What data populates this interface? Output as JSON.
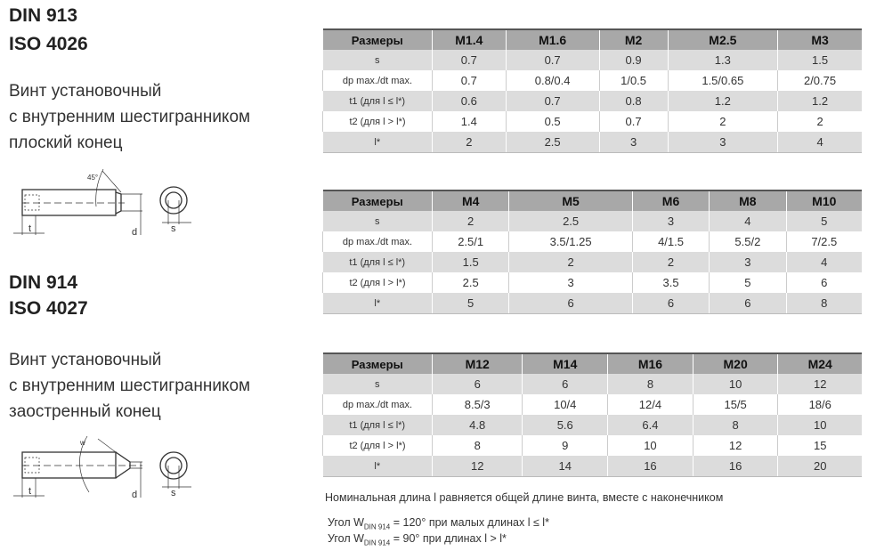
{
  "left": {
    "din913": "DIN 913",
    "iso4026": "ISO 4026",
    "desc1": [
      "Винт установочный",
      "с внутренним шестигранником",
      "плоский конец"
    ],
    "din914": "DIN 914",
    "iso4027": "ISO 4027",
    "desc2": [
      "Винт установочный",
      "с внутренним шестигранником",
      "заостренный конец"
    ],
    "drawing_labels": {
      "t": "t",
      "d": "d",
      "s": "s",
      "angle": "45°",
      "w": "w"
    }
  },
  "row_labels": [
    "Размеры",
    "s",
    "dp max./dt max.",
    "t1 (для l ≤ l*)",
    "t2 (для l > l*)",
    "l*"
  ],
  "tables": [
    {
      "sizes": [
        "M1.4",
        "M1.6",
        "M2",
        "M2.5",
        "M3"
      ],
      "rows": [
        [
          "0.7",
          "0.7",
          "0.9",
          "1.3",
          "1.5"
        ],
        [
          "0.7",
          "0.8/0.4",
          "1/0.5",
          "1.5/0.65",
          "2/0.75"
        ],
        [
          "0.6",
          "0.7",
          "0.8",
          "1.2",
          "1.2"
        ],
        [
          "1.4",
          "0.5",
          "0.7",
          "2",
          "2"
        ],
        [
          "2",
          "2.5",
          "3",
          "3",
          "4"
        ]
      ]
    },
    {
      "sizes": [
        "M4",
        "M5",
        "M6",
        "M8",
        "M10"
      ],
      "rows": [
        [
          "2",
          "2.5",
          "3",
          "4",
          "5"
        ],
        [
          "2.5/1",
          "3.5/1.25",
          "4/1.5",
          "5.5/2",
          "7/2.5"
        ],
        [
          "1.5",
          "2",
          "2",
          "3",
          "4"
        ],
        [
          "2.5",
          "3",
          "3.5",
          "5",
          "6"
        ],
        [
          "5",
          "6",
          "6",
          "6",
          "8"
        ]
      ]
    },
    {
      "sizes": [
        "M12",
        "M14",
        "M16",
        "M20",
        "M24"
      ],
      "rows": [
        [
          "6",
          "6",
          "8",
          "10",
          "12"
        ],
        [
          "8.5/3",
          "10/4",
          "12/4",
          "15/5",
          "18/6"
        ],
        [
          "4.8",
          "5.6",
          "6.4",
          "8",
          "10"
        ],
        [
          "8",
          "9",
          "10",
          "12",
          "15"
        ],
        [
          "12",
          "14",
          "16",
          "16",
          "20"
        ]
      ]
    }
  ],
  "notes": {
    "nominal": "Номинальная длина l равняется общей длине винта, вместе с наконечником",
    "angle1_pre": "Угол W",
    "angle_sub": "DIN 914",
    "angle1_post": " = 120° при малых длинах l ≤ l*",
    "angle2_pre": "Угол W",
    "angle2_post": " = 90° при длинах l > l*"
  }
}
